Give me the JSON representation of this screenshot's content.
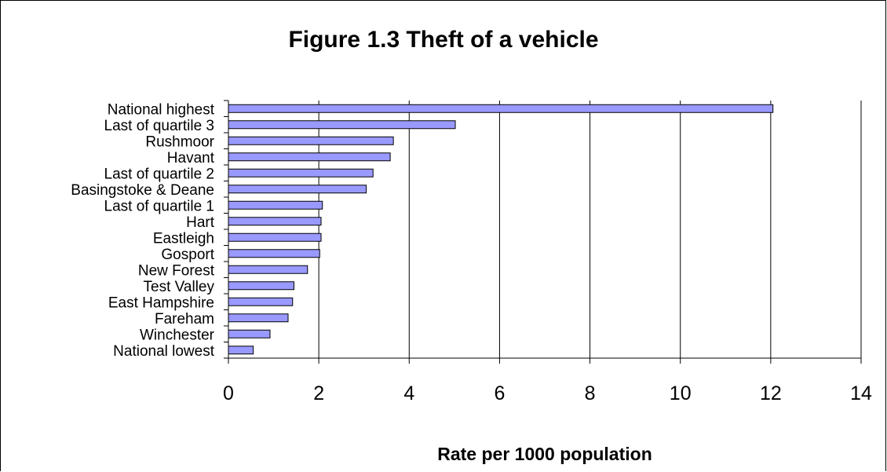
{
  "chart_data": {
    "type": "bar",
    "orientation": "horizontal",
    "title": "Figure 1.3 Theft of a vehicle",
    "xlabel": "Rate per 1000 population",
    "ylabel": "",
    "xlim": [
      0,
      14
    ],
    "xticks": [
      0,
      2,
      4,
      6,
      8,
      10,
      12,
      14
    ],
    "grid": "vertical",
    "bar_color": "#9999FF",
    "categories": [
      "National highest",
      "Last of quartile 3",
      "Rushmoor",
      "Havant",
      "Last of quartile 2",
      "Basingstoke & Deane",
      "Last of quartile 1",
      "Hart",
      "Eastleigh",
      "Gosport",
      "New Forest",
      "Test Valley",
      "East Hampshire",
      "Fareham",
      "Winchester",
      "National lowest"
    ],
    "values": [
      12.05,
      5.02,
      3.65,
      3.58,
      3.2,
      3.05,
      2.08,
      2.05,
      2.05,
      2.02,
      1.75,
      1.45,
      1.42,
      1.32,
      0.92,
      0.55
    ]
  }
}
